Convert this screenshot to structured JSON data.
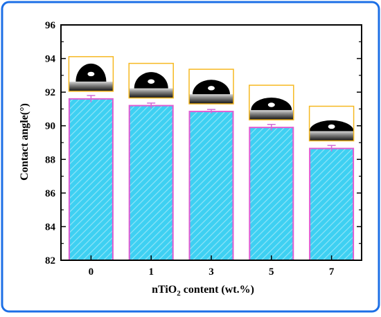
{
  "colors": {
    "frame_border": "#1c6fe6",
    "bar_fill": "#3ed0f2",
    "bar_hatch": "#8fe4f8",
    "bar_edge": "#e05cd2",
    "error_bar": "#d26ad6",
    "inset_border": "#f6b820",
    "droplet": "#000000",
    "axis": "#000000"
  },
  "chart_data": {
    "type": "bar",
    "categories": [
      "0",
      "1",
      "3",
      "5",
      "7"
    ],
    "values": [
      91.6,
      91.2,
      90.85,
      89.9,
      88.65
    ],
    "errors": [
      0.2,
      0.15,
      0.12,
      0.18,
      0.18
    ],
    "xlabel_main": "nTiO",
    "xlabel_sub": "2",
    "xlabel_rest": " content (wt.%)",
    "ylabel": "Contact angle(°)",
    "ylim": [
      82,
      96
    ],
    "yticks": [
      "82",
      "84",
      "86",
      "88",
      "90",
      "92",
      "94",
      "96"
    ],
    "grid": false,
    "legend": "none",
    "insets": "water droplet photographs above each bar"
  }
}
